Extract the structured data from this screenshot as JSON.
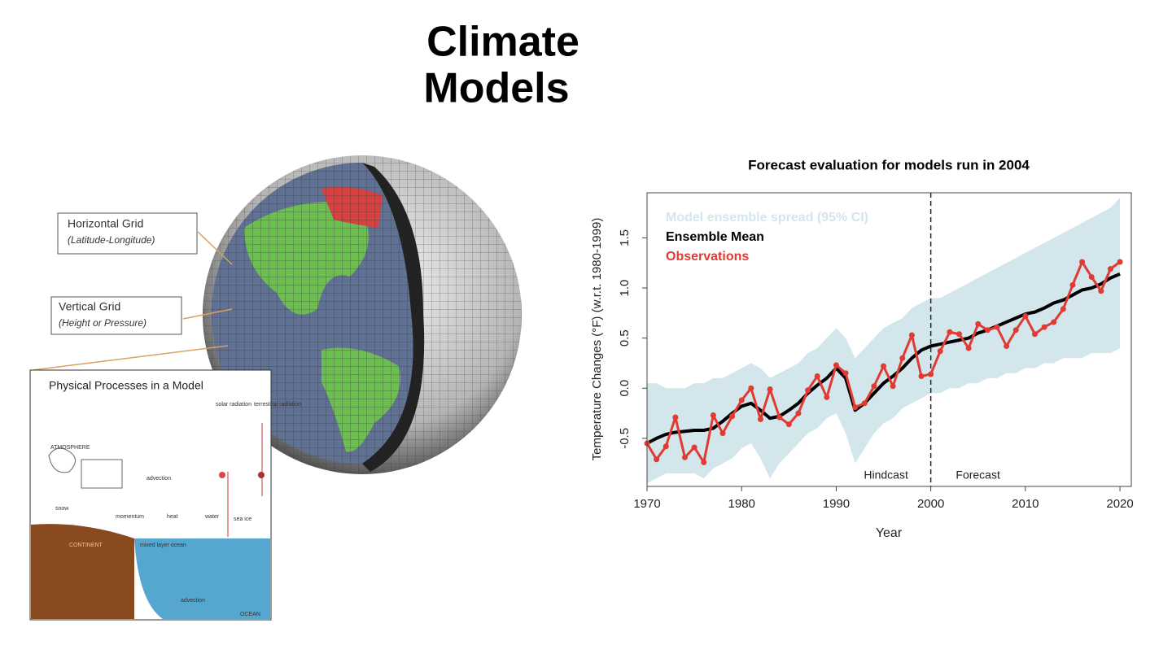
{
  "title": "Climate Models",
  "diagram": {
    "labels": [
      {
        "title": "Horizontal Grid",
        "subtitle": "(Latitude-Longitude)"
      },
      {
        "title": "Vertical Grid",
        "subtitle": "(Height or Pressure)"
      }
    ],
    "inset": {
      "title": "Physical Processes in a Model",
      "labels": [
        "ATMOSPHERE",
        "advection",
        "solar radiation",
        "terrestrial radiation",
        "snow",
        "momentum",
        "heat",
        "water",
        "sea ice",
        "CONTINENT",
        "mixed layer ocean",
        "advection",
        "OCEAN"
      ]
    }
  },
  "chart_data": {
    "type": "line",
    "title": "Forecast evaluation for models run in 2004",
    "x_label": "Year",
    "y_label": "Temperature Changes (°F) (w.r.t. 1980-1999)",
    "x": [
      1970,
      1971,
      1972,
      1973,
      1974,
      1975,
      1976,
      1977,
      1978,
      1979,
      1980,
      1981,
      1982,
      1983,
      1984,
      1985,
      1986,
      1987,
      1988,
      1989,
      1990,
      1991,
      1992,
      1993,
      1994,
      1995,
      1996,
      1997,
      1998,
      1999,
      2000,
      2001,
      2002,
      2003,
      2004,
      2005,
      2006,
      2007,
      2008,
      2009,
      2010,
      2011,
      2012,
      2013,
      2014,
      2015,
      2016,
      2017,
      2018,
      2019,
      2020
    ],
    "band": {
      "name": "Model ensemble spread (95% CI)",
      "color": "#d3e6ec",
      "upper": [
        0.05,
        0.05,
        0.0,
        0.0,
        0.0,
        0.05,
        0.05,
        0.1,
        0.1,
        0.15,
        0.2,
        0.25,
        0.2,
        0.1,
        0.15,
        0.2,
        0.25,
        0.35,
        0.4,
        0.5,
        0.6,
        0.5,
        0.3,
        0.4,
        0.5,
        0.6,
        0.65,
        0.7,
        0.8,
        0.85,
        0.9,
        0.9,
        0.95,
        1.0,
        1.05,
        1.1,
        1.15,
        1.2,
        1.25,
        1.3,
        1.35,
        1.4,
        1.45,
        1.5,
        1.55,
        1.6,
        1.65,
        1.7,
        1.75,
        1.8,
        1.9
      ],
      "lower": [
        -0.95,
        -0.9,
        -0.85,
        -0.85,
        -0.85,
        -0.85,
        -0.9,
        -0.8,
        -0.75,
        -0.7,
        -0.6,
        -0.55,
        -0.7,
        -0.9,
        -0.75,
        -0.65,
        -0.55,
        -0.45,
        -0.4,
        -0.3,
        -0.25,
        -0.45,
        -0.75,
        -0.6,
        -0.45,
        -0.35,
        -0.3,
        -0.2,
        -0.15,
        -0.1,
        -0.05,
        -0.05,
        0.0,
        0.0,
        0.05,
        0.05,
        0.1,
        0.1,
        0.15,
        0.15,
        0.2,
        0.2,
        0.25,
        0.25,
        0.3,
        0.3,
        0.3,
        0.35,
        0.35,
        0.35,
        0.4
      ]
    },
    "series": [
      {
        "name": "Ensemble Mean",
        "color": "#000000",
        "values": [
          -0.55,
          -0.5,
          -0.46,
          -0.44,
          -0.43,
          -0.42,
          -0.42,
          -0.4,
          -0.33,
          -0.25,
          -0.18,
          -0.15,
          -0.22,
          -0.3,
          -0.28,
          -0.22,
          -0.15,
          -0.05,
          0.03,
          0.1,
          0.2,
          0.1,
          -0.22,
          -0.15,
          -0.05,
          0.05,
          0.12,
          0.2,
          0.3,
          0.38,
          0.42,
          0.44,
          0.46,
          0.48,
          0.5,
          0.55,
          0.58,
          0.62,
          0.66,
          0.7,
          0.74,
          0.76,
          0.8,
          0.85,
          0.88,
          0.93,
          0.98,
          1.0,
          1.04,
          1.1,
          1.14
        ]
      },
      {
        "name": "Observations",
        "color": "#e03a33",
        "values": [
          -0.55,
          -0.71,
          -0.58,
          -0.29,
          -0.69,
          -0.59,
          -0.74,
          -0.27,
          -0.45,
          -0.28,
          -0.12,
          0.0,
          -0.31,
          -0.01,
          -0.29,
          -0.36,
          -0.25,
          -0.02,
          0.12,
          -0.09,
          0.23,
          0.15,
          -0.19,
          -0.15,
          0.02,
          0.22,
          0.02,
          0.3,
          0.53,
          0.12,
          0.14,
          0.37,
          0.56,
          0.54,
          0.4,
          0.64,
          0.58,
          0.61,
          0.42,
          0.58,
          0.72,
          0.54,
          0.61,
          0.66,
          0.79,
          1.03,
          1.26,
          1.11,
          0.97,
          1.19,
          1.26
        ]
      }
    ],
    "xlim": [
      1970,
      2021.2
    ],
    "ylim": [
      -0.98,
      1.95
    ],
    "xticks": [
      1970,
      1980,
      1990,
      2000,
      2010,
      2020
    ],
    "yticks": [
      -0.5,
      {
        "value": 0,
        "label": "0.0"
      },
      0.5,
      {
        "value": 1,
        "label": "1.0"
      },
      1.5
    ],
    "divider_x": 2000,
    "annotations": [
      "Hindcast",
      "Forecast"
    ]
  }
}
